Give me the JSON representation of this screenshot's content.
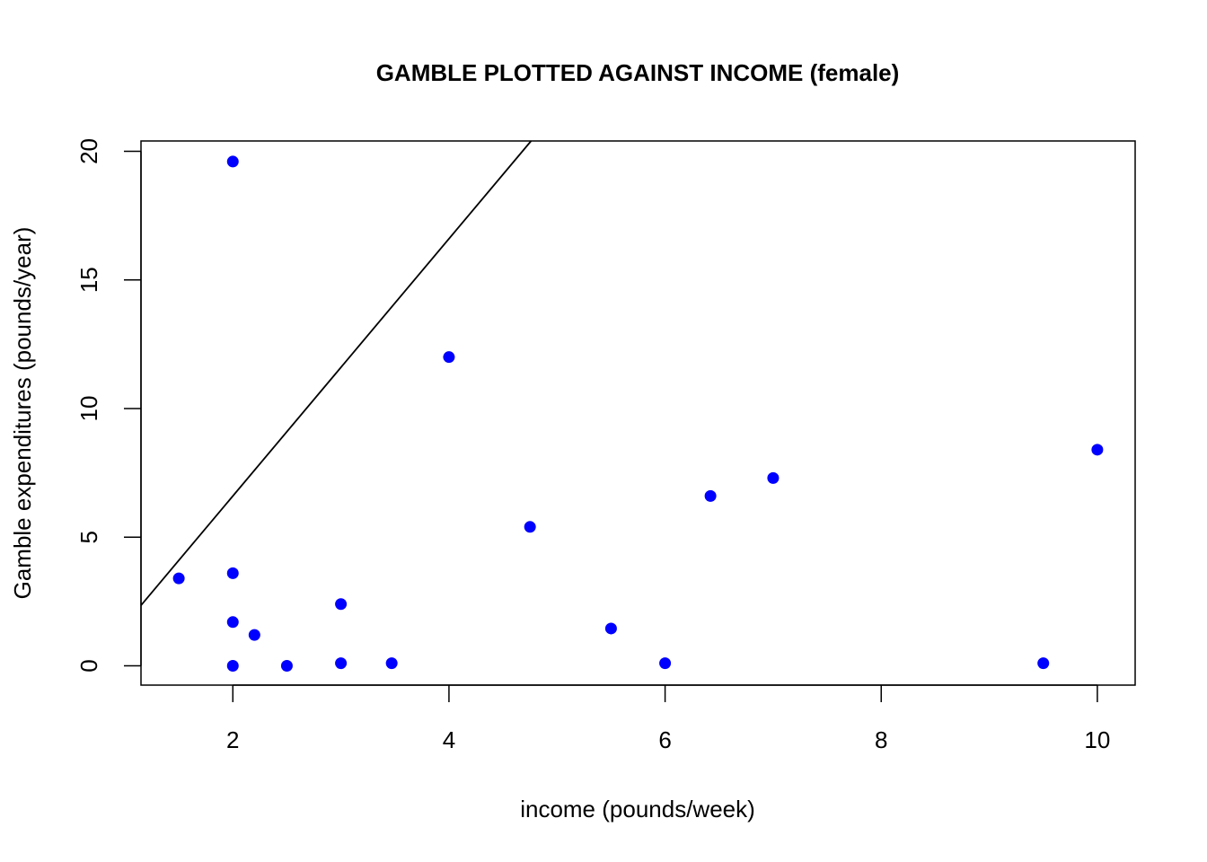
{
  "chart_data": {
    "type": "scatter",
    "title": "GAMBLE PLOTTED AGAINST INCOME (female)",
    "xlabel": "income (pounds/week)",
    "ylabel": "Gamble expenditures (pounds/year)",
    "xlim": [
      1.15,
      10.35
    ],
    "ylim": [
      -0.75,
      20.4
    ],
    "xticks": [
      2,
      4,
      6,
      8,
      10
    ],
    "yticks": [
      0,
      5,
      10,
      15,
      20
    ],
    "grid": false,
    "point_color": "#0000ff",
    "line_color": "#000000",
    "points": [
      {
        "x": 1.5,
        "y": 3.4
      },
      {
        "x": 2.0,
        "y": 19.6
      },
      {
        "x": 2.0,
        "y": 3.6
      },
      {
        "x": 2.0,
        "y": 1.7
      },
      {
        "x": 2.0,
        "y": 0.0
      },
      {
        "x": 2.2,
        "y": 1.2
      },
      {
        "x": 2.5,
        "y": 0.0
      },
      {
        "x": 3.0,
        "y": 2.4
      },
      {
        "x": 3.0,
        "y": 0.1
      },
      {
        "x": 3.47,
        "y": 0.1
      },
      {
        "x": 4.0,
        "y": 12.0
      },
      {
        "x": 4.75,
        "y": 5.4
      },
      {
        "x": 5.5,
        "y": 1.45
      },
      {
        "x": 6.0,
        "y": 0.1
      },
      {
        "x": 6.42,
        "y": 6.6
      },
      {
        "x": 7.0,
        "y": 7.3
      },
      {
        "x": 9.5,
        "y": 0.1
      },
      {
        "x": 10.0,
        "y": 8.4
      }
    ],
    "reference_line": {
      "intercept": -3.4,
      "slope": 5.0
    }
  }
}
